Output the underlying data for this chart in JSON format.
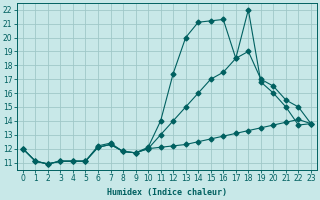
{
  "xlabel": "Humidex (Indice chaleur)",
  "x_ticks": [
    0,
    1,
    2,
    3,
    4,
    5,
    6,
    7,
    8,
    9,
    10,
    11,
    12,
    13,
    14,
    15,
    16,
    17,
    18,
    19,
    20,
    21,
    22,
    23
  ],
  "ylim": [
    10.5,
    22.5
  ],
  "xlim": [
    -0.5,
    23.5
  ],
  "yticks": [
    11,
    12,
    13,
    14,
    15,
    16,
    17,
    18,
    19,
    20,
    21,
    22
  ],
  "bg_color": "#c8e8e8",
  "line_color": "#006060",
  "grid_color": "#a0c8c8",
  "line1_x": [
    0,
    1,
    2,
    3,
    4,
    5,
    6,
    7,
    8,
    9,
    10,
    11,
    12,
    13,
    14,
    15,
    16,
    17,
    18,
    19,
    20,
    21,
    22,
    23
  ],
  "line1_y": [
    12.0,
    11.1,
    10.9,
    11.1,
    11.1,
    11.1,
    12.2,
    12.4,
    11.8,
    11.7,
    12.1,
    14.0,
    17.4,
    20.0,
    21.1,
    21.2,
    21.3,
    18.5,
    22.0,
    16.8,
    16.0,
    15.0,
    13.7,
    13.8
  ],
  "line2_x": [
    0,
    1,
    2,
    3,
    4,
    5,
    6,
    7,
    8,
    9,
    10,
    11,
    12,
    13,
    14,
    15,
    16,
    17,
    18,
    19,
    20,
    21,
    22,
    23
  ],
  "line2_y": [
    12.0,
    11.1,
    10.9,
    11.1,
    11.1,
    11.1,
    12.1,
    12.3,
    11.8,
    11.7,
    12.0,
    12.1,
    12.2,
    12.3,
    12.5,
    12.7,
    12.9,
    13.1,
    13.3,
    13.5,
    13.7,
    13.9,
    14.1,
    13.8
  ],
  "line3_x": [
    0,
    1,
    2,
    3,
    4,
    5,
    6,
    7,
    8,
    9,
    10,
    11,
    12,
    13,
    14,
    15,
    16,
    17,
    18,
    19,
    20,
    21,
    22,
    23
  ],
  "line3_y": [
    12.0,
    11.1,
    10.9,
    11.1,
    11.1,
    11.1,
    12.1,
    12.3,
    11.8,
    11.7,
    12.0,
    13.0,
    14.0,
    15.0,
    16.0,
    17.0,
    17.5,
    18.5,
    19.0,
    17.0,
    16.5,
    15.5,
    15.0,
    13.8
  ]
}
